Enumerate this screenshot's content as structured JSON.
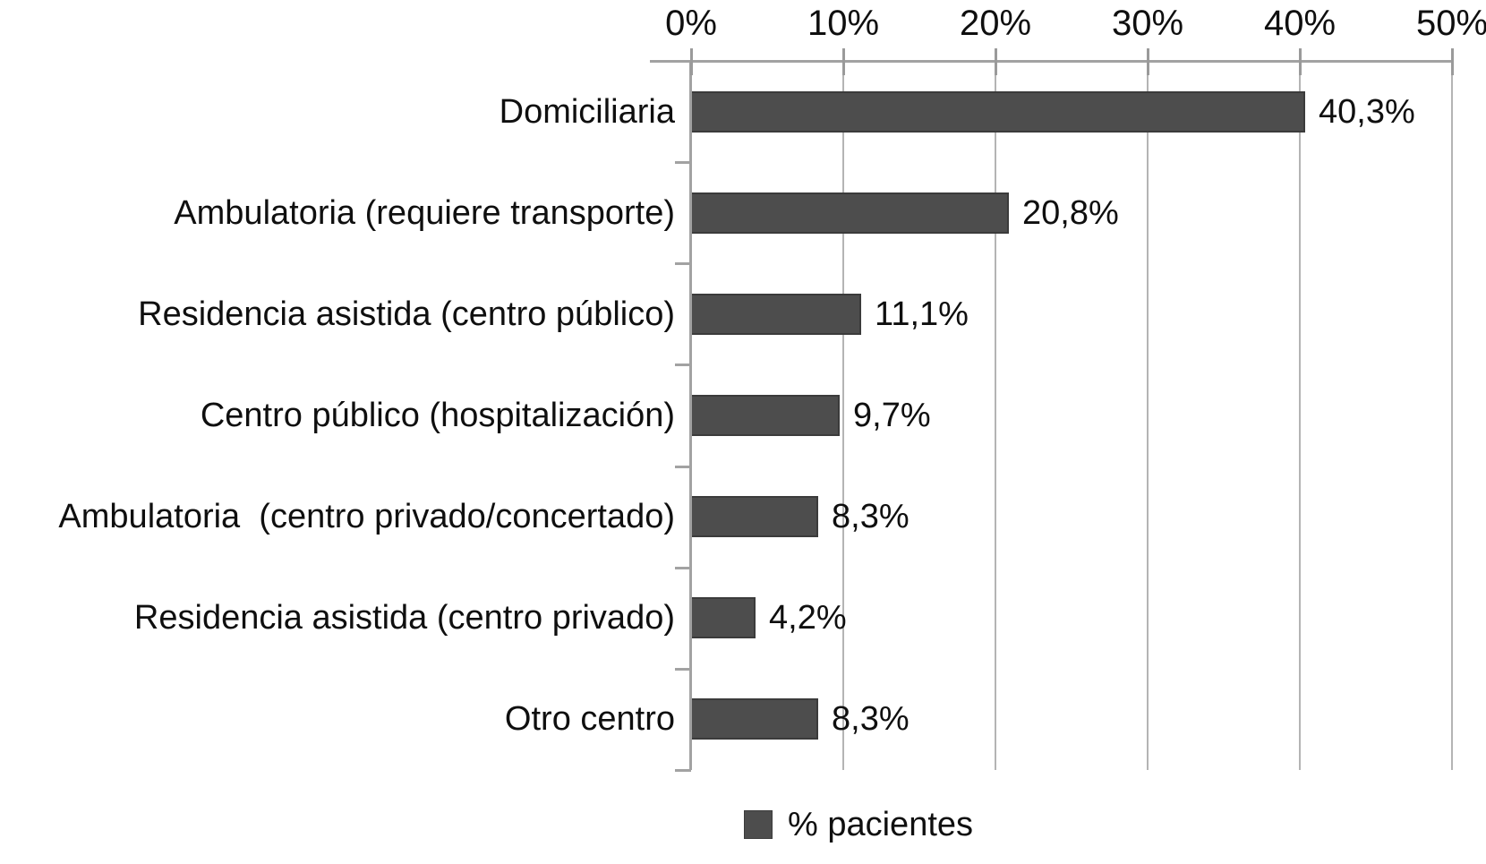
{
  "chart_data": {
    "type": "bar",
    "orientation": "horizontal",
    "title": "",
    "categories": [
      "Domiciliaria",
      "Ambulatoria (requiere transporte)",
      "Residencia asistida (centro público)",
      "Centro público (hospitalización)",
      "Ambulatoria  (centro privado/concertado)",
      "Residencia asistida (centro privado)",
      "Otro centro"
    ],
    "series": [
      {
        "name": "% pacientes",
        "values": [
          40.3,
          20.8,
          11.1,
          9.7,
          8.3,
          4.2,
          8.3
        ]
      }
    ],
    "value_labels": [
      "40,3%",
      "20,8%",
      "11,1%",
      "9,7%",
      "8,3%",
      "4,2%",
      "8,3%"
    ],
    "x_axis": {
      "position": "top",
      "range": [
        0,
        50
      ],
      "tick_values": [
        0,
        10,
        20,
        30,
        40,
        50
      ],
      "tick_labels": [
        "0%",
        "10%",
        "20%",
        "30%",
        "40%",
        "50%"
      ]
    },
    "grid": true,
    "legend": {
      "label": "% pacientes",
      "position": "bottom"
    },
    "colors": {
      "bar_fill": "#4d4d4d",
      "bar_border": "#3b3b3b",
      "gridline": "#b4b4b4",
      "axis": "#a2a2a2",
      "text": "#0f0f0f"
    }
  }
}
